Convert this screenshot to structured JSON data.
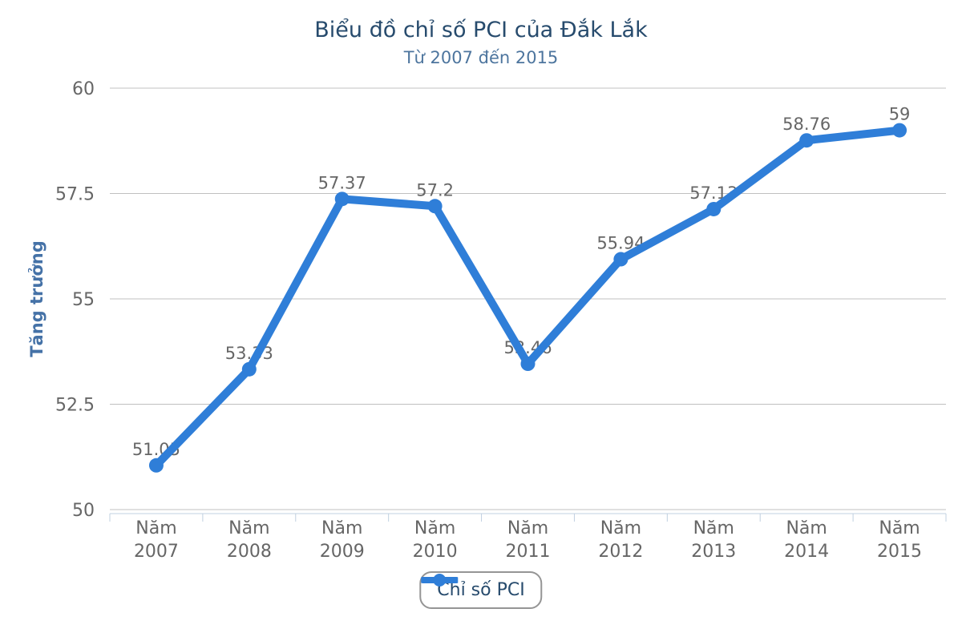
{
  "header": {
    "title": "Biểu đồ chỉ số PCI của Đắk Lắk",
    "subtitle": "Từ 2007 đến 2015"
  },
  "chart_data": {
    "type": "line",
    "title": "Biểu đồ chỉ số PCI của Đắk Lắk",
    "subtitle": "Từ 2007 đến 2015",
    "categories": [
      "Năm 2007",
      "Năm 2008",
      "Năm 2009",
      "Năm 2010",
      "Năm 2011",
      "Năm 2012",
      "Năm 2013",
      "Năm 2014",
      "Năm 2015"
    ],
    "series": [
      {
        "name": "Chỉ số PCI",
        "color": "#2f7ed8",
        "values": [
          51.05,
          53.33,
          57.37,
          57.2,
          53.46,
          55.94,
          57.13,
          58.76,
          59
        ]
      }
    ],
    "xlabel": "",
    "ylabel": "Tăng trưởng",
    "ylim": [
      50,
      60
    ],
    "yticks": [
      50,
      52.5,
      55,
      57.5,
      60
    ],
    "grid": "horizontal-only",
    "data_labels": true,
    "legend_position": "bottom-center"
  },
  "colors": {
    "series": "#2f7ed8",
    "title": "#274b6d",
    "subtitle": "#4d759e",
    "y_axis_title": "#4572a7",
    "tick_label": "#666666",
    "data_label": "#666666",
    "gridline": "#c0c0c0",
    "axis_line": "#c0d0e0",
    "legend_border": "#959595",
    "background": "#ffffff"
  }
}
